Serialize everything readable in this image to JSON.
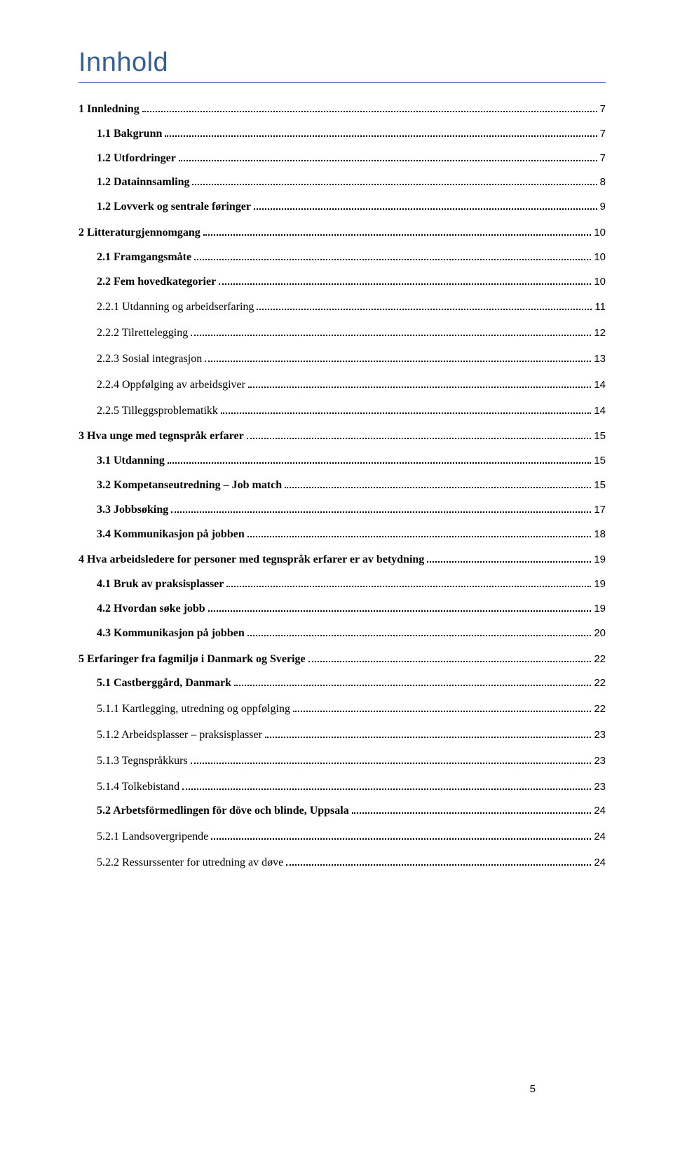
{
  "title": "Innhold",
  "page_number": "5",
  "colors": {
    "heading": "#365f91",
    "rule": "#4f81bd",
    "text": "#000000",
    "background": "#ffffff"
  },
  "typography": {
    "title_font": "Trebuchet MS",
    "title_size_pt": 28,
    "body_font": "Times New Roman",
    "body_size_pt": 12,
    "page_number_font": "Trebuchet MS"
  },
  "toc": [
    {
      "level": 1,
      "label": "1 Innledning",
      "page": "7"
    },
    {
      "level": 2,
      "label": "1.1 Bakgrunn",
      "page": "7"
    },
    {
      "level": 2,
      "label": "1.2 Utfordringer",
      "page": "7"
    },
    {
      "level": 2,
      "label": "1.2 Datainnsamling",
      "page": "8"
    },
    {
      "level": 2,
      "label": "1.2 Lovverk og sentrale føringer",
      "page": "9"
    },
    {
      "level": 1,
      "label": "2 Litteraturgjennomgang",
      "page": "10"
    },
    {
      "level": 2,
      "label": "2.1 Framgangsmåte",
      "page": "10"
    },
    {
      "level": 2,
      "label": "2.2 Fem hovedkategorier",
      "page": "10"
    },
    {
      "level": 3,
      "label": "2.2.1 Utdanning og arbeidserfaring",
      "page": "11"
    },
    {
      "level": 3,
      "label": "2.2.2 Tilrettelegging",
      "page": "12"
    },
    {
      "level": 3,
      "label": "2.2.3 Sosial integrasjon",
      "page": "13"
    },
    {
      "level": 3,
      "label": "2.2.4 Oppfølging av arbeidsgiver",
      "page": "14"
    },
    {
      "level": 3,
      "label": "2.2.5 Tilleggsproblematikk",
      "page": "14"
    },
    {
      "level": 1,
      "label": "3 Hva unge med tegnspråk erfarer",
      "page": "15"
    },
    {
      "level": 2,
      "label": "3.1 Utdanning",
      "page": "15"
    },
    {
      "level": 2,
      "label": "3.2 Kompetanseutredning – Job match",
      "page": "15"
    },
    {
      "level": 2,
      "label": "3.3 Jobbsøking",
      "page": "17"
    },
    {
      "level": 2,
      "label": "3.4 Kommunikasjon på jobben",
      "page": "18"
    },
    {
      "level": 1,
      "label": "4 Hva arbeidsledere for personer med tegnspråk erfarer er av betydning",
      "page": "19"
    },
    {
      "level": 2,
      "label": "4.1 Bruk av praksisplasser",
      "page": "19"
    },
    {
      "level": 2,
      "label": "4.2 Hvordan søke jobb",
      "page": "19"
    },
    {
      "level": 2,
      "label": "4.3 Kommunikasjon på jobben",
      "page": "20"
    },
    {
      "level": 1,
      "label": "5 Erfaringer fra fagmiljø i Danmark og Sverige",
      "page": "22"
    },
    {
      "level": 2,
      "label": "5.1 Castberggård, Danmark",
      "page": "22"
    },
    {
      "level": 3,
      "label": "5.1.1 Kartlegging, utredning og oppfølging",
      "page": "22"
    },
    {
      "level": 3,
      "label": "5.1.2 Arbeidsplasser – praksisplasser",
      "page": "23"
    },
    {
      "level": 3,
      "label": "5.1.3 Tegnspråkkurs",
      "page": "23"
    },
    {
      "level": 3,
      "label": "5.1.4 Tolkebistand",
      "page": "23"
    },
    {
      "level": 2,
      "label": "5.2 Arbetsförmedlingen för döve och blinde, Uppsala",
      "page": "24"
    },
    {
      "level": 3,
      "label": "5.2.1 Landsovergripende",
      "page": "24"
    },
    {
      "level": 3,
      "label": "5.2.2 Ressurssenter for utredning av døve",
      "page": "24"
    }
  ]
}
